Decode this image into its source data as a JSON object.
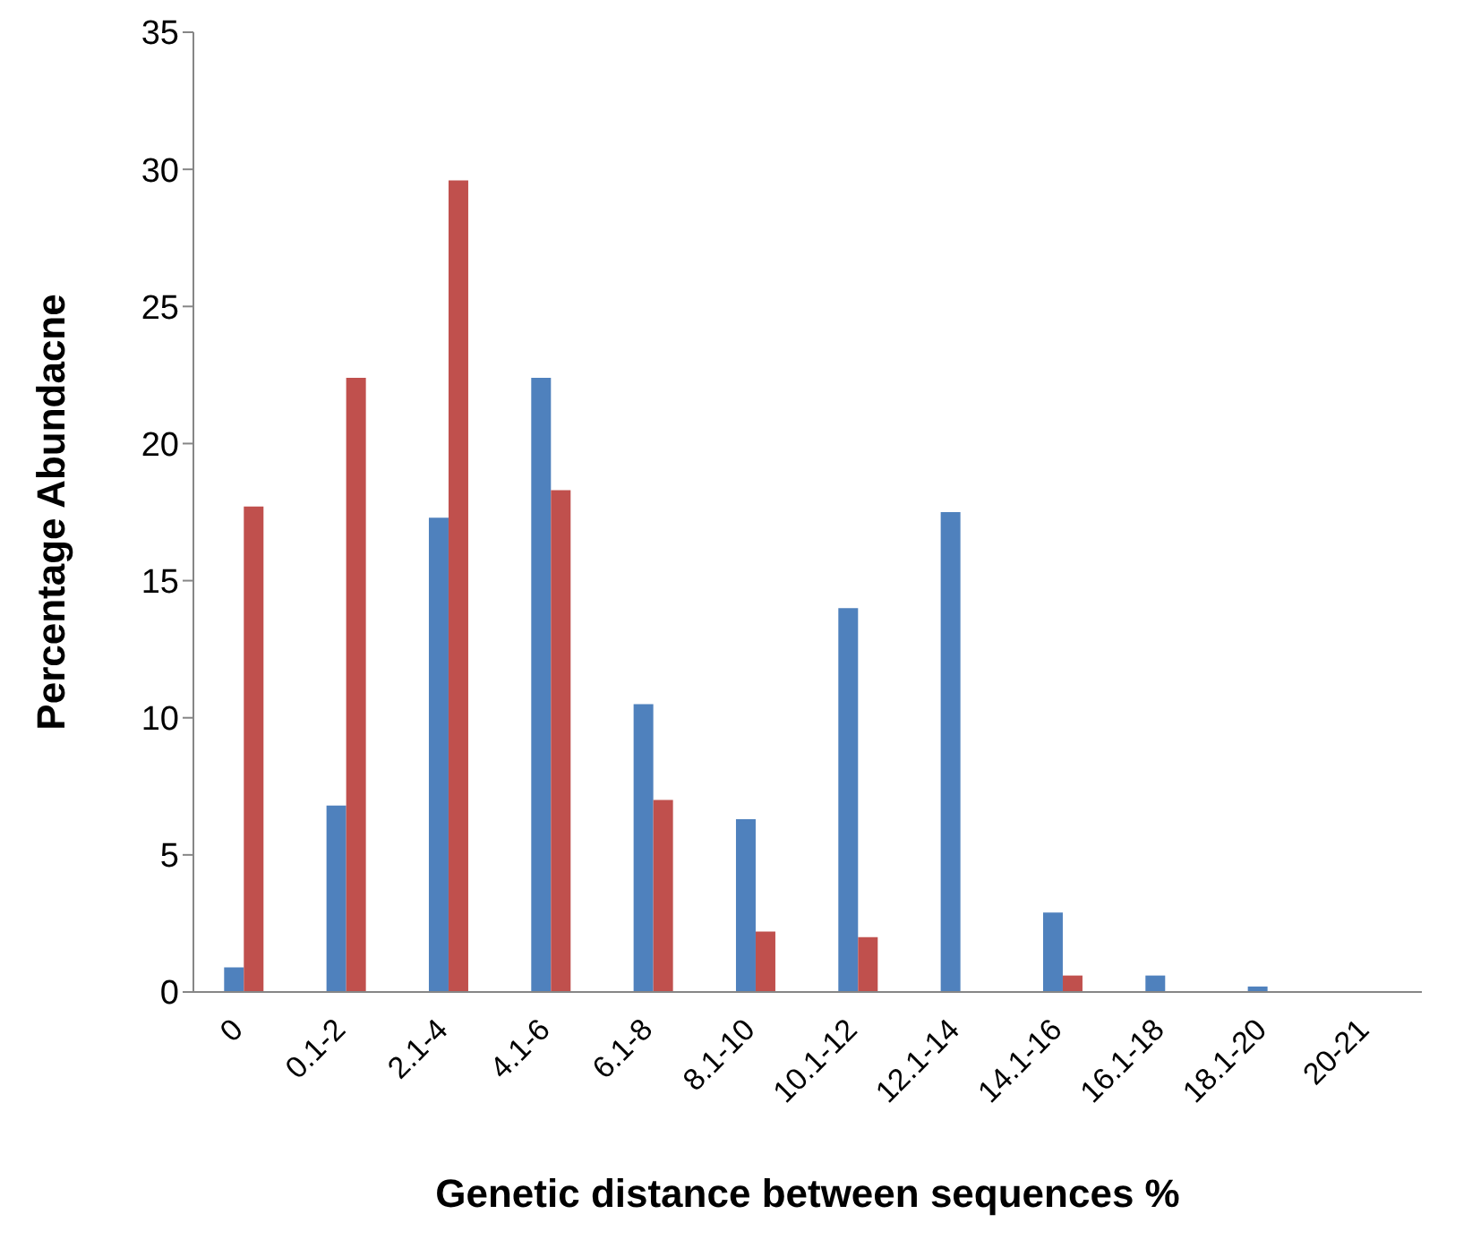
{
  "chart_data": {
    "type": "bar",
    "xlabel": "Genetic distance between sequences %",
    "ylabel": "Percentage Abundacne",
    "categories": [
      "0",
      "0.1-2",
      "2.1-4",
      "4.1-6",
      "6.1-8",
      "8.1-10",
      "10.1-12",
      "12.1-14",
      "14.1-16",
      "16.1-18",
      "18.1-20",
      "20-21"
    ],
    "series": [
      {
        "color": "#4f81bd",
        "values": [
          0.9,
          6.8,
          17.3,
          22.4,
          10.5,
          6.3,
          14.0,
          17.5,
          2.9,
          0.6,
          0.2,
          null
        ]
      },
      {
        "color": "#c0504d",
        "values": [
          17.7,
          22.4,
          29.6,
          18.3,
          7.0,
          2.2,
          2.0,
          0,
          0.6,
          0,
          0,
          0
        ]
      }
    ],
    "ylim": [
      0,
      35
    ],
    "yticks": [
      0,
      5,
      10,
      15,
      20,
      25,
      30,
      35
    ],
    "grid": false,
    "legend": false
  }
}
